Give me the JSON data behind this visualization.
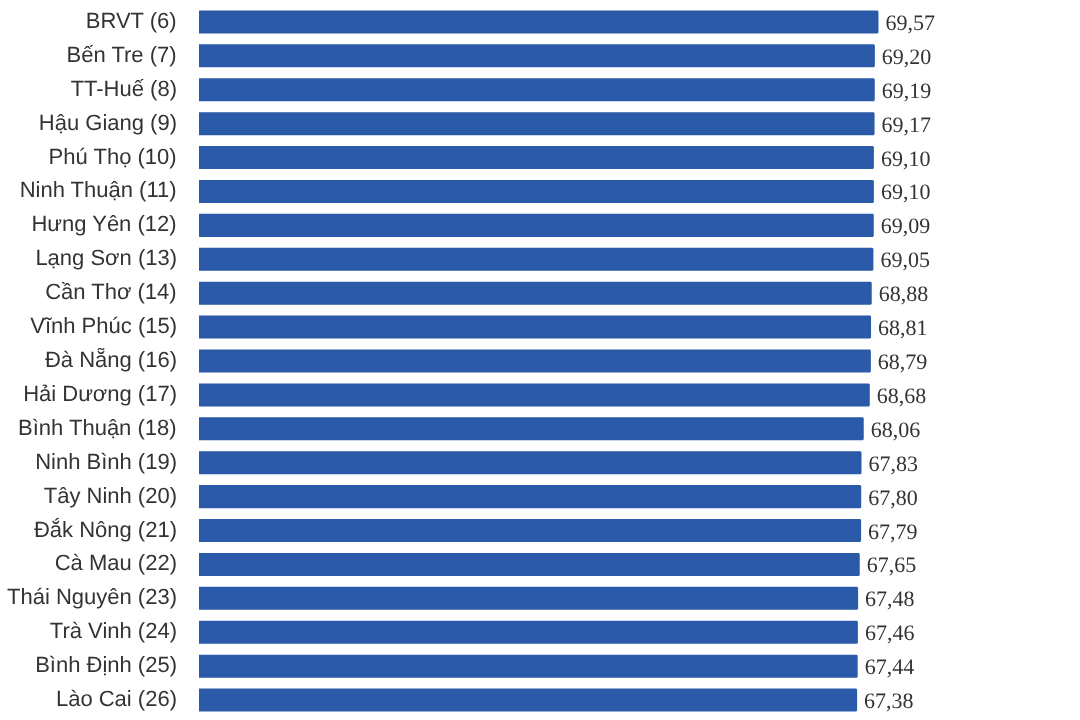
{
  "chart_data": {
    "type": "bar",
    "orientation": "horizontal",
    "categories": [
      "BRVT (6)",
      "Bến Tre (7)",
      "TT-Huế (8)",
      "Hậu Giang (9)",
      "Phú Thọ (10)",
      "Ninh Thuận (11)",
      "Hưng Yên (12)",
      "Lạng Sơn (13)",
      "Cần Thơ (14)",
      "Vĩnh Phúc (15)",
      "Đà Nẵng (16)",
      "Hải Dương (17)",
      "Bình Thuận (18)",
      "Ninh Bình (19)",
      "Tây Ninh (20)",
      "Đắk Nông (21)",
      "Cà Mau (22)",
      "Thái Nguyên (23)",
      "Trà Vinh (24)",
      "Bình Định (25)",
      "Lào Cai (26)"
    ],
    "values": [
      69.57,
      69.2,
      69.19,
      69.17,
      69.1,
      69.1,
      69.09,
      69.05,
      68.88,
      68.81,
      68.79,
      68.68,
      68.06,
      67.83,
      67.8,
      67.79,
      67.65,
      67.48,
      67.46,
      67.44,
      67.38
    ],
    "value_labels": [
      "69,57",
      "69,20",
      "69,19",
      "69,17",
      "69,10",
      "69,10",
      "69,09",
      "69,05",
      "68,88",
      "68,81",
      "68,79",
      "68,68",
      "68,06",
      "67,83",
      "67,80",
      "67,79",
      "67,65",
      "67,48",
      "67,46",
      "67,44",
      "67,38"
    ],
    "color": "#2a5aa8",
    "tick_labels": "y",
    "grid": false
  }
}
